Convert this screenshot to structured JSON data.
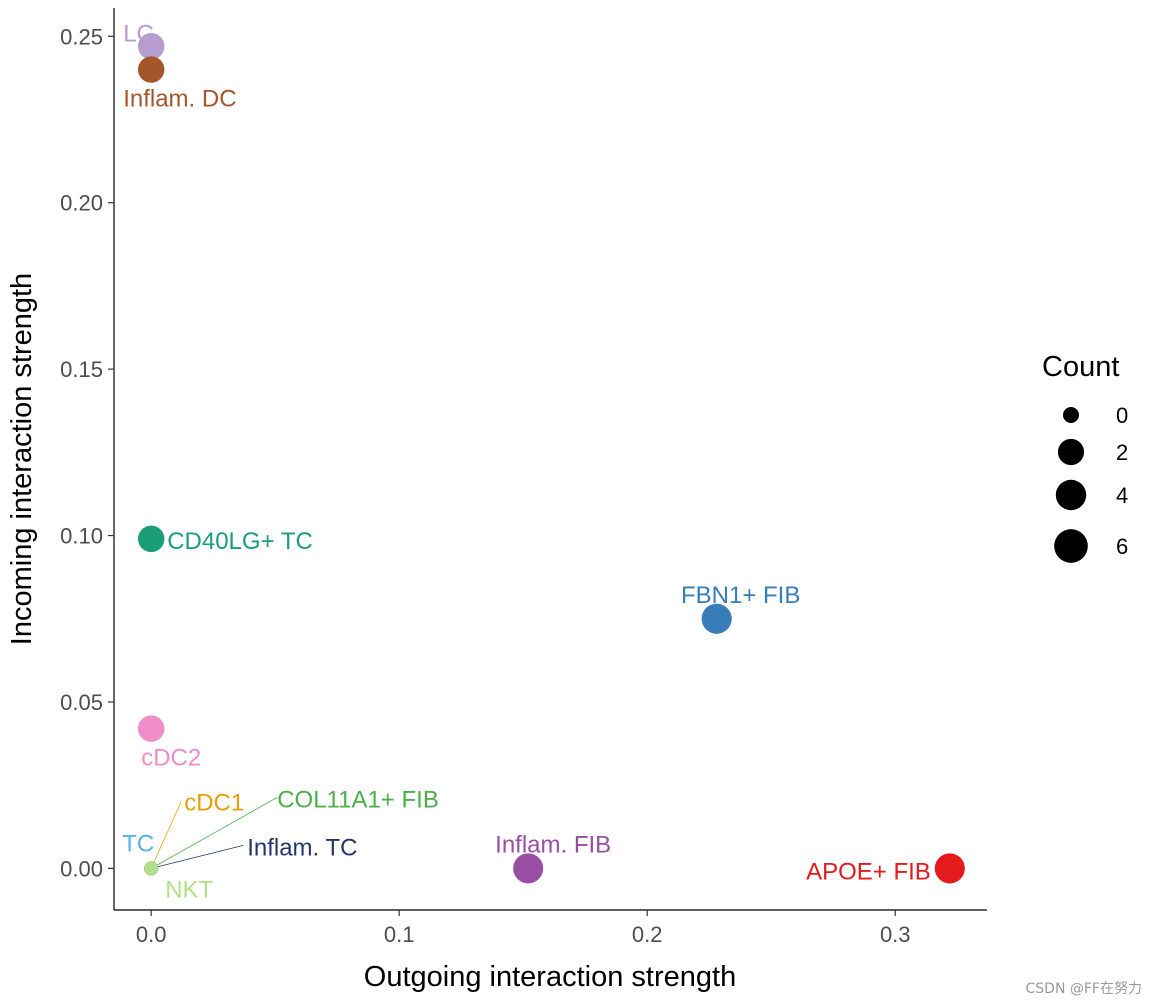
{
  "chart_data": {
    "type": "scatter",
    "xlabel": "Outgoing interaction strength",
    "ylabel": "Incoming interaction strength",
    "xlim": [
      -0.015,
      0.337
    ],
    "ylim": [
      -0.0125,
      0.2585
    ],
    "x_ticks": [
      0.0,
      0.1,
      0.2,
      0.3
    ],
    "x_tick_labels": [
      "0.0",
      "0.1",
      "0.2",
      "0.3"
    ],
    "y_ticks": [
      0.0,
      0.05,
      0.1,
      0.15,
      0.2,
      0.25
    ],
    "y_tick_labels": [
      "0.00",
      "0.05",
      "0.10",
      "0.15",
      "0.20",
      "0.25"
    ],
    "grid": false,
    "legend": {
      "title": "Count",
      "placement": "right",
      "entries": [
        {
          "label": "0",
          "count": 0
        },
        {
          "label": "2",
          "count": 2
        },
        {
          "label": "4",
          "count": 4
        },
        {
          "label": "6",
          "count": 6
        }
      ]
    },
    "points": [
      {
        "name": "LC",
        "x": 0.0,
        "y": 0.247,
        "count": 3,
        "color": "#b79ccf"
      },
      {
        "name": "Inflam. DC",
        "x": 0.0,
        "y": 0.24,
        "count": 3,
        "color": "#a5552a"
      },
      {
        "name": "CD40LG+ TC",
        "x": 0.0,
        "y": 0.099,
        "count": 3,
        "color": "#1b9e77"
      },
      {
        "name": "FBN1+ FIB",
        "x": 0.228,
        "y": 0.075,
        "count": 5,
        "color": "#377eb8"
      },
      {
        "name": "cDC2",
        "x": 0.0,
        "y": 0.042,
        "count": 3,
        "color": "#f08cc6"
      },
      {
        "name": "cDC1",
        "x": 0.0,
        "y": 0.0,
        "count": 0,
        "color": "#e69f00"
      },
      {
        "name": "COL11A1+ FIB",
        "x": 0.0,
        "y": 0.0,
        "count": 0,
        "color": "#4daf4a"
      },
      {
        "name": "TC",
        "x": 0.0,
        "y": 0.0,
        "count": 0,
        "color": "#56b4e9"
      },
      {
        "name": "Inflam. TC",
        "x": 0.0,
        "y": 0.0,
        "count": 0,
        "color": "#24356e"
      },
      {
        "name": "NKT",
        "x": 0.0,
        "y": 0.0,
        "count": 0,
        "color": "#b2df8a"
      },
      {
        "name": "Inflam. FIB",
        "x": 0.152,
        "y": 0.0,
        "count": 5,
        "color": "#984ea3"
      },
      {
        "name": "APOE+ FIB",
        "x": 0.322,
        "y": 0.0,
        "count": 5,
        "color": "#e41a1c"
      }
    ]
  },
  "watermark": "CSDN @FF在努力"
}
